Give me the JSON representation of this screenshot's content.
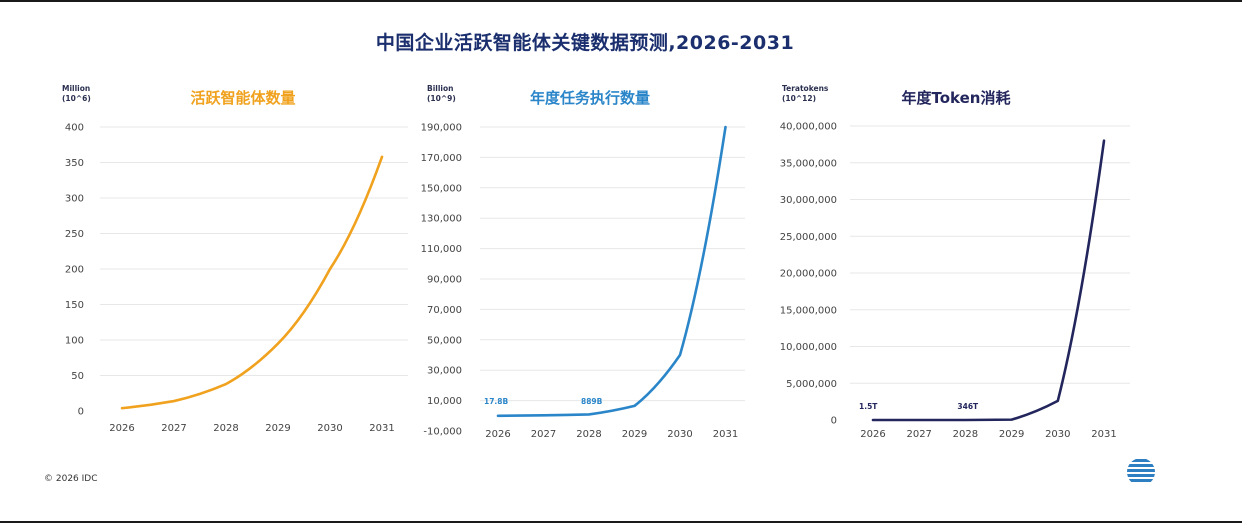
{
  "title": "中国企业活跃智能体关键数据预测,2026-2031",
  "footer": {
    "copyright": "© 2026 IDC"
  },
  "colors": {
    "title": "#1b2f6e",
    "agents": "#f0a21e",
    "tasks": "#2b86c9",
    "tokens": "#23265c",
    "grid": "#e7e7e7"
  },
  "chart_data": [
    {
      "type": "line",
      "title": "活跃智能体数量",
      "ylabel": [
        "Million",
        "(10^6)"
      ],
      "categories": [
        "2026",
        "2027",
        "2028",
        "2029",
        "2030",
        "2031"
      ],
      "series": [
        {
          "values": [
            4,
            14,
            38,
            95,
            200,
            358
          ]
        }
      ],
      "ylim": [
        0,
        400
      ],
      "yticks": [
        "0",
        "50",
        "100",
        "150",
        "200",
        "250",
        "300",
        "350",
        "400"
      ],
      "grid": true
    },
    {
      "type": "line",
      "title": "年度任务执行数量",
      "ylabel": [
        "Billion",
        "(10^9)"
      ],
      "categories": [
        "2026",
        "2027",
        "2028",
        "2029",
        "2030",
        "2031"
      ],
      "series": [
        {
          "values": [
            17.8,
            300,
            889,
            6500,
            40000,
            190000
          ]
        }
      ],
      "ylim": [
        -10000,
        190000
      ],
      "yticks": [
        "-10,000",
        "10,000",
        "30,000",
        "50,000",
        "70,000",
        "90,000",
        "110,000",
        "130,000",
        "150,000",
        "170,000",
        "190,000"
      ],
      "annotations": [
        {
          "category": "2026",
          "text": "17.8B"
        },
        {
          "category": "2028",
          "text": "889B"
        }
      ],
      "grid": true
    },
    {
      "type": "line",
      "title": "年度Token消耗",
      "ylabel": [
        "Teratokens",
        "(10^12)"
      ],
      "categories": [
        "2026",
        "2027",
        "2028",
        "2029",
        "2030",
        "2031"
      ],
      "series": [
        {
          "values": [
            1.5,
            20,
            346,
            50000,
            2600000,
            38000000
          ]
        }
      ],
      "ylim": [
        0,
        40000000
      ],
      "yticks": [
        "0",
        "5,000,000",
        "10,000,000",
        "15,000,000",
        "20,000,000",
        "25,000,000",
        "30,000,000",
        "35,000,000",
        "40,000,000"
      ],
      "annotations": [
        {
          "category": "2026",
          "text": "1.5T"
        },
        {
          "category": "2028",
          "text": "346T"
        }
      ],
      "grid": true
    }
  ]
}
